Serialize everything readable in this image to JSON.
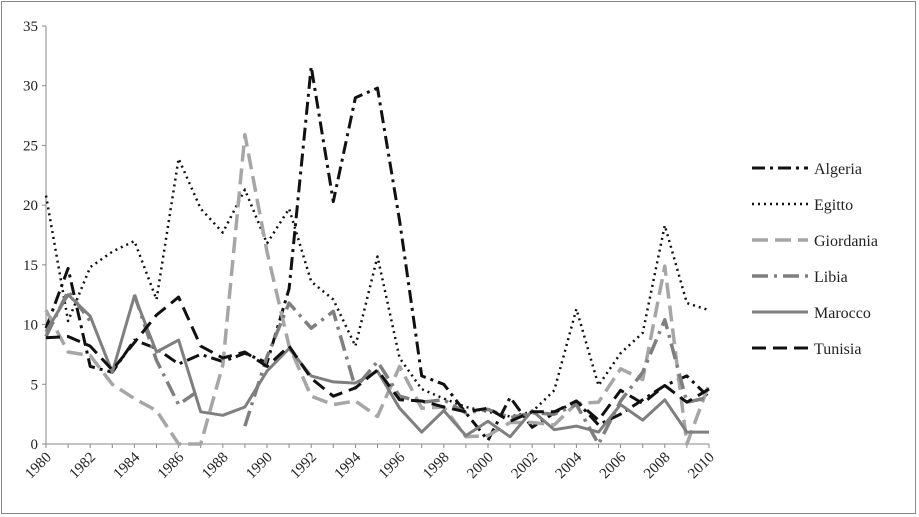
{
  "chart_data": {
    "type": "line",
    "title": "",
    "xlabel": "",
    "ylabel": "",
    "ylim": [
      0,
      35
    ],
    "yticks": [
      "0",
      "5",
      "10",
      "15",
      "20",
      "25",
      "30",
      "35"
    ],
    "xticks": [
      "1980",
      "1982",
      "1984",
      "1986",
      "1988",
      "1990",
      "1992",
      "1994",
      "1996",
      "1998",
      "2000",
      "2002",
      "2004",
      "2006",
      "2008",
      "2010"
    ],
    "x": [
      1980,
      1981,
      1982,
      1983,
      1984,
      1985,
      1986,
      1987,
      1988,
      1989,
      1990,
      1991,
      1992,
      1993,
      1994,
      1995,
      1996,
      1997,
      1998,
      1999,
      2000,
      2001,
      2002,
      2003,
      2004,
      2005,
      2006,
      2007,
      2008,
      2009,
      2010
    ],
    "grid": false,
    "legend": "right",
    "series": [
      {
        "name": "Algeria",
        "color": "#111111",
        "dash": "13,5,3,5",
        "width": 3,
        "values": [
          9.7,
          14.7,
          6.5,
          6.0,
          8.7,
          8.0,
          6.7,
          7.5,
          6.9,
          7.6,
          6.8,
          13.0,
          31.6,
          20.3,
          29.0,
          29.8,
          18.7,
          5.7,
          5.0,
          2.6,
          0.3,
          3.9,
          1.4,
          2.6,
          3.6,
          1.6,
          2.5,
          3.7,
          4.9,
          5.7,
          3.9
        ]
      },
      {
        "name": "Egitto",
        "color": "#111111",
        "dash": "2,4",
        "width": 2.5,
        "values": [
          20.8,
          10.3,
          14.8,
          16.1,
          17.0,
          12.1,
          23.9,
          19.7,
          17.7,
          21.3,
          16.8,
          19.7,
          13.6,
          12.1,
          8.2,
          15.7,
          7.2,
          4.6,
          3.8,
          3.1,
          2.7,
          2.3,
          2.7,
          4.5,
          11.3,
          4.9,
          7.6,
          9.3,
          18.3,
          11.8,
          11.2
        ]
      },
      {
        "name": "Giordania",
        "color": "#a6a6a6",
        "dash": "16,7",
        "width": 3.5,
        "values": [
          11.2,
          7.7,
          7.4,
          5.0,
          3.8,
          2.8,
          0.0,
          0.0,
          6.6,
          25.9,
          16.1,
          8.2,
          4.0,
          3.3,
          3.6,
          2.3,
          6.5,
          3.0,
          3.1,
          0.6,
          0.7,
          1.8,
          1.8,
          1.6,
          3.4,
          3.5,
          6.3,
          5.4,
          14.9,
          0.0,
          5.0
        ]
      },
      {
        "name": "Libia",
        "color": "#7f7f7f",
        "dash": "16,6,3,6",
        "width": 3.5,
        "values": [
          9.0,
          12.8,
          10.3,
          null,
          12.5,
          7.0,
          3.3,
          4.6,
          null,
          1.5,
          7.3,
          11.8,
          9.7,
          11.1,
          4.7,
          6.9,
          4.0,
          3.5,
          3.7,
          2.6,
          2.9,
          2.2,
          2.6,
          2.5,
          3.3,
          0.0,
          3.6,
          6.0,
          10.4,
          3.5,
          3.9
        ]
      },
      {
        "name": "Marocco",
        "color": "#7f7f7f",
        "dash": "",
        "width": 3,
        "values": [
          9.4,
          12.5,
          10.7,
          6.0,
          12.4,
          7.7,
          8.7,
          2.7,
          2.4,
          3.1,
          6.1,
          8.0,
          5.7,
          5.2,
          5.1,
          6.1,
          3.0,
          1.0,
          2.8,
          0.7,
          1.9,
          0.6,
          2.8,
          1.2,
          1.5,
          1.0,
          3.3,
          2.0,
          3.7,
          1.0,
          1.0
        ]
      },
      {
        "name": "Tunisia",
        "color": "#111111",
        "dash": "14,7",
        "width": 3,
        "values": [
          8.9,
          9.0,
          8.2,
          6.2,
          8.5,
          10.8,
          12.3,
          8.2,
          7.2,
          7.7,
          6.5,
          8.2,
          5.5,
          4.0,
          4.7,
          6.2,
          3.7,
          3.6,
          3.1,
          2.7,
          3.0,
          1.9,
          2.7,
          2.7,
          3.6,
          2.0,
          4.5,
          3.4,
          4.9,
          3.5,
          4.6
        ]
      }
    ]
  }
}
